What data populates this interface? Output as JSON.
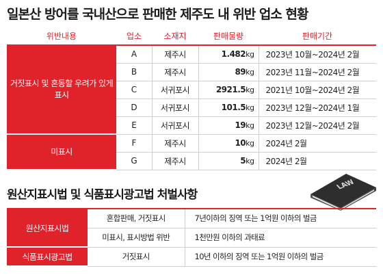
{
  "title": "일본산 방어를 국내산으로 판매한 제주도 내 위반 업소 현황",
  "table1": {
    "headers": [
      "위반내용",
      "업소",
      "소재지",
      "판매물량",
      "판매기간"
    ],
    "category_false": "거짓표시 및 혼동할 우려가 있게 표시",
    "category_none": "미표시",
    "rows": [
      {
        "shop": "A",
        "location": "제주시",
        "amount": "1.482",
        "unit": "kg",
        "period": "2023년 10월~2024년 2월"
      },
      {
        "shop": "B",
        "location": "제주시",
        "amount": "89",
        "unit": "kg",
        "period": "2023년 11월~2024년 2월"
      },
      {
        "shop": "C",
        "location": "서귀포시",
        "amount": "2921.5",
        "unit": "kg",
        "period": "2021년 10월~2024년 2월"
      },
      {
        "shop": "D",
        "location": "서귀포시",
        "amount": "101.5",
        "unit": "kg",
        "period": "2023년 12월~2024년 1월"
      },
      {
        "shop": "E",
        "location": "서귀포시",
        "amount": "19",
        "unit": "kg",
        "period": "2023년 12월~2024년 2월"
      },
      {
        "shop": "F",
        "location": "제주시",
        "amount": "10",
        "unit": "kg",
        "period": "2024년 2월"
      },
      {
        "shop": "G",
        "location": "제주시",
        "amount": "5",
        "unit": "kg",
        "period": "2024년 2월"
      }
    ]
  },
  "subtitle": "원산지표시법 및 식품표시광고법 처벌사항",
  "book_label": "LAW",
  "table2": {
    "law1": "원산지표시법",
    "law2": "식품표시광고법",
    "rows": [
      {
        "violation": "혼합판매, 거짓표시",
        "penalty": "7년이하의 징역 또는 1억원 이하의 벌금"
      },
      {
        "violation": "미표시, 표시방법 위반",
        "penalty": "1천만원 이하의 과태료"
      },
      {
        "violation": "거짓표시",
        "penalty": "10년 이하의 징역 또는 1억원 이하의 벌금"
      }
    ]
  },
  "colors": {
    "accent": "#e0232b",
    "book": "#3a3a3a"
  }
}
